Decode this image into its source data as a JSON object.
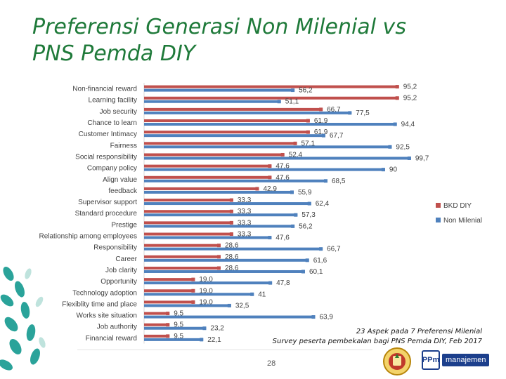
{
  "slide": {
    "title_line1": "Preferensi Generasi  Non Milenial vs",
    "title_line2": "PNS Pemda DIY",
    "note_line1": "23 Aspek pada 7 Preferensi Milenial",
    "note_line2": "Survey peserta pembekalan bagi PNS Pemda DIY, Feb 2017",
    "page_number": "28",
    "logo_mark": "PPm",
    "logo_text": "manajemen"
  },
  "colors": {
    "title": "#1f7a3a",
    "bkd": "#c0504d",
    "non_milenial": "#4f81bd",
    "deco": "#2aa39a"
  },
  "chart_data": {
    "type": "bar",
    "orientation": "horizontal",
    "title": "",
    "xlabel": "",
    "ylabel": "",
    "xlim": [
      0,
      100
    ],
    "grid": false,
    "legend_position": "right",
    "categories": [
      "Non-financial reward",
      "Learning facility",
      "Job security",
      "Chance to learn",
      "Customer Intimacy",
      "Fairness",
      "Social responsibility",
      "Company policy",
      "Align value",
      "feedback",
      "Supervisor support",
      "Standard procedure",
      "Prestige",
      "Relationship among employees",
      "Responsibility",
      "Career",
      "Job clarity",
      "Opportunity",
      "Technology adoption",
      "Flexiblity time and place",
      "Works site situation",
      "Job authority",
      "Financial reward"
    ],
    "series": [
      {
        "name": "BKD DIY",
        "color": "#c0504d",
        "values": [
          95.2,
          95.2,
          66.7,
          61.9,
          61.9,
          57.1,
          52.4,
          47.6,
          47.6,
          42.9,
          33.3,
          33.3,
          33.3,
          33.3,
          28.6,
          28.6,
          28.6,
          19.0,
          19.0,
          19.0,
          9.5,
          9.5,
          9.5
        ],
        "labels": [
          "95,2",
          "95,2",
          "66,7",
          "61,9",
          "61,9",
          "57,1",
          "52,4",
          "47,6",
          "47,6",
          "42,9",
          "33,3",
          "33,3",
          "33,3",
          "33,3",
          "28,6",
          "28,6",
          "28,6",
          "19,0",
          "19,0",
          "19,0",
          "9,5",
          "9,5",
          "9,5"
        ]
      },
      {
        "name": "Non Milenial",
        "color": "#4f81bd",
        "values": [
          56.2,
          51.1,
          77.5,
          94.4,
          67.7,
          92.5,
          99.7,
          90,
          68.5,
          55.9,
          62.4,
          57.3,
          56.2,
          47.6,
          66.7,
          61.6,
          60.1,
          47.8,
          41,
          32.5,
          63.9,
          23.2,
          22.1
        ],
        "labels": [
          "56,2",
          "51,1",
          "77,5",
          "94,4",
          "67,7",
          "92,5",
          "99,7",
          "90",
          "68,5",
          "55,9",
          "62,4",
          "57,3",
          "56,2",
          "47,6",
          "66,7",
          "61,6",
          "60,1",
          "47,8",
          "41",
          "32,5",
          "63,9",
          "23,2",
          "22,1"
        ]
      }
    ]
  }
}
